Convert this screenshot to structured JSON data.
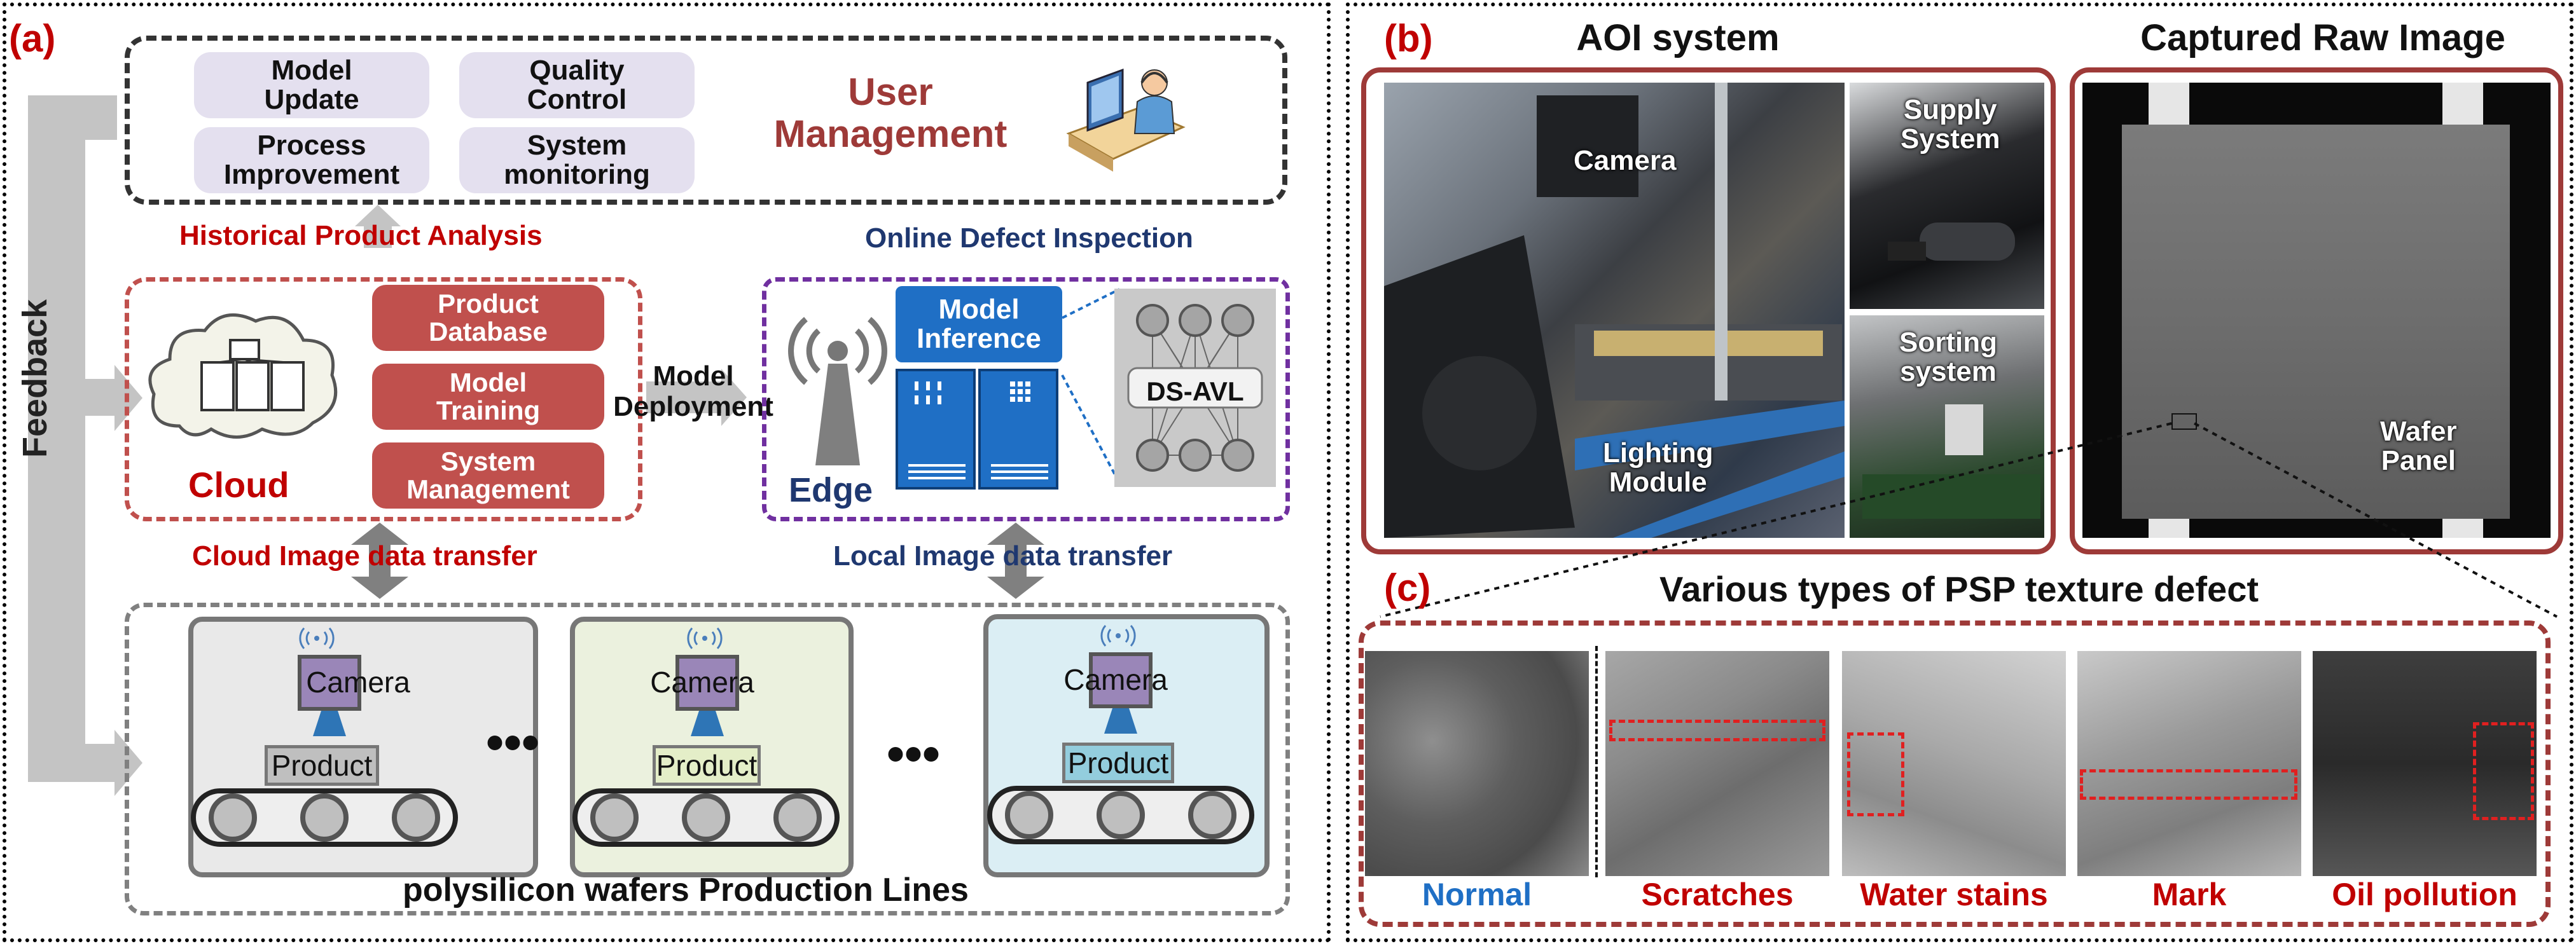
{
  "panel_a": {
    "label": "(a)",
    "feedback": "Feedback",
    "user_mgmt": {
      "title_line1": "User",
      "title_line2": "Management",
      "buttons": [
        {
          "l1": "Model",
          "l2": "Update"
        },
        {
          "l1": "Quality",
          "l2": "Control"
        },
        {
          "l1": "Process",
          "l2": "Improvement"
        },
        {
          "l1": "System",
          "l2": "monitoring"
        }
      ]
    },
    "historical": "Historical Product Analysis",
    "online": "Online Defect Inspection",
    "cloud": {
      "label": "Cloud",
      "items": [
        {
          "l1": "Product",
          "l2": "Database"
        },
        {
          "l1": "Model",
          "l2": "Training"
        },
        {
          "l1": "System",
          "l2": "Management"
        }
      ]
    },
    "deployment": {
      "l1": "Model",
      "l2": "Deployment"
    },
    "edge": {
      "label": "Edge",
      "inference_l1": "Model",
      "inference_l2": "Inference",
      "network": "DS-AVL"
    },
    "cloud_transfer": "Cloud Image data transfer",
    "local_transfer": "Local Image data transfer",
    "lines": {
      "camera": "Camera",
      "product": "Product",
      "ellipsis": "•••",
      "title": "polysilicon wafers Production Lines"
    }
  },
  "panel_b": {
    "label": "(b)",
    "aoi_title": "AOI system",
    "raw_title": "Captured Raw Image",
    "camera": "Camera",
    "supply_l1": "Supply",
    "supply_l2": "System",
    "sorting_l1": "Sorting",
    "sorting_l2": "system",
    "lighting_l1": "Lighting",
    "lighting_l2": "Module",
    "wafer_l1": "Wafer",
    "wafer_l2": "Panel"
  },
  "panel_c": {
    "label": "(c)",
    "title": "Various types of PSP texture defect",
    "defects": [
      "Normal",
      "Scratches",
      "Water stains",
      "Mark",
      "Oil pollution"
    ]
  },
  "colors": {
    "dark_red": "#9e3a38",
    "pill_red": "#c0504d",
    "edge_blue": "#1f6fc5",
    "normal_blue": "#1f6fc5",
    "defect_red": "#c00000",
    "purple": "#7030a0"
  }
}
